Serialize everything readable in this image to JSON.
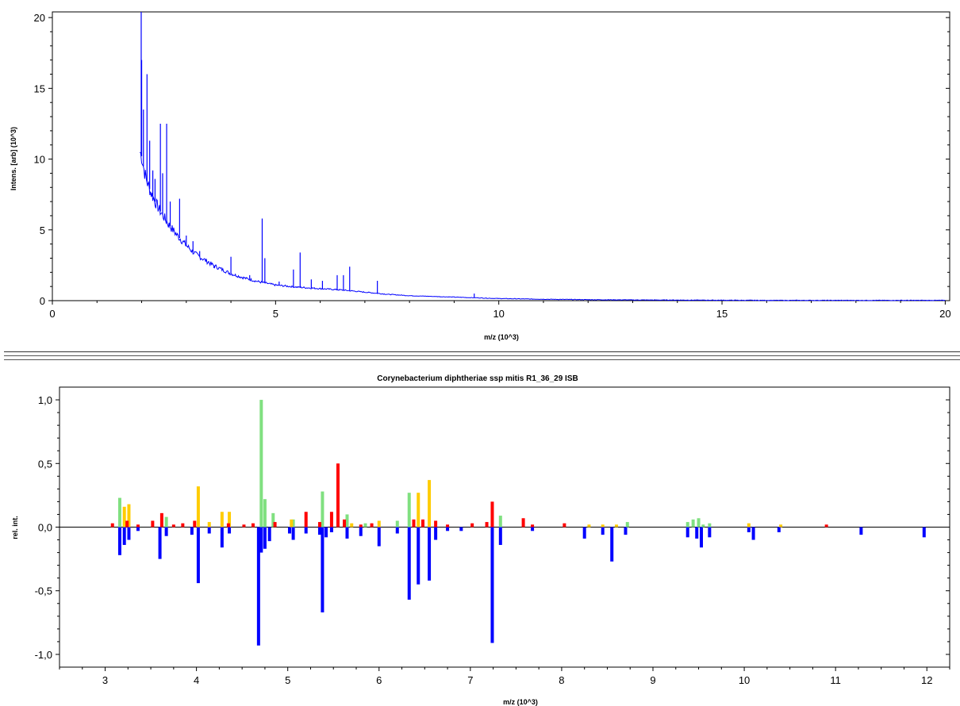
{
  "chart_data": [
    {
      "type": "line",
      "title": "",
      "xlabel": "m/z (10^3)",
      "ylabel": "Intens. [arb] (10^3)",
      "xlim": [
        0,
        20.1
      ],
      "ylim": [
        0,
        20.4
      ],
      "xticks": [
        0,
        5,
        10,
        15,
        20
      ],
      "yticks": [
        0,
        5,
        10,
        15,
        20
      ],
      "line_color": "#0000ff",
      "series": [
        {
          "x": [
            1.96,
            2.0,
            2.05,
            2.1,
            2.2,
            2.3,
            2.4,
            2.5,
            2.6,
            2.8,
            3.0,
            3.2,
            3.4,
            3.6,
            3.8,
            4.0,
            4.3,
            4.6,
            5.0,
            5.5,
            6.0,
            6.5,
            7.0,
            7.5,
            8.0,
            8.5,
            9.0,
            9.5,
            10.0,
            11.0,
            12.0,
            13.0,
            14.0,
            15.0,
            16.0,
            18.0,
            20.0
          ],
          "y": [
            10.5,
            10.2,
            9.3,
            8.6,
            7.7,
            7.0,
            6.4,
            5.9,
            5.4,
            4.6,
            3.9,
            3.3,
            2.9,
            2.5,
            2.2,
            1.9,
            1.6,
            1.35,
            1.1,
            0.95,
            0.85,
            0.75,
            0.6,
            0.45,
            0.35,
            0.3,
            0.25,
            0.2,
            0.15,
            0.1,
            0.07,
            0.05,
            0.04,
            0.03,
            0.02,
            0.02,
            0.02
          ]
        }
      ],
      "peaks": [
        {
          "x": 1.99,
          "y": 20.4
        },
        {
          "x": 2.0,
          "y": 17.0
        },
        {
          "x": 2.04,
          "y": 13.5
        },
        {
          "x": 2.12,
          "y": 16.0
        },
        {
          "x": 2.18,
          "y": 11.3
        },
        {
          "x": 2.25,
          "y": 9.2
        },
        {
          "x": 2.3,
          "y": 8.6
        },
        {
          "x": 2.42,
          "y": 12.5
        },
        {
          "x": 2.47,
          "y": 9.0
        },
        {
          "x": 2.56,
          "y": 12.5
        },
        {
          "x": 2.64,
          "y": 7.0
        },
        {
          "x": 2.85,
          "y": 7.2
        },
        {
          "x": 3.0,
          "y": 4.6
        },
        {
          "x": 3.15,
          "y": 4.2
        },
        {
          "x": 3.3,
          "y": 3.5
        },
        {
          "x": 3.5,
          "y": 2.8
        },
        {
          "x": 3.62,
          "y": 2.3
        },
        {
          "x": 4.0,
          "y": 3.1
        },
        {
          "x": 4.42,
          "y": 1.8
        },
        {
          "x": 4.7,
          "y": 5.8
        },
        {
          "x": 4.76,
          "y": 3.0
        },
        {
          "x": 5.08,
          "y": 1.35
        },
        {
          "x": 5.4,
          "y": 2.2
        },
        {
          "x": 5.55,
          "y": 3.4
        },
        {
          "x": 5.8,
          "y": 1.5
        },
        {
          "x": 6.05,
          "y": 1.4
        },
        {
          "x": 6.38,
          "y": 1.8
        },
        {
          "x": 6.52,
          "y": 1.8
        },
        {
          "x": 6.66,
          "y": 2.4
        },
        {
          "x": 7.28,
          "y": 1.4
        },
        {
          "x": 9.45,
          "y": 0.5
        }
      ]
    },
    {
      "type": "bar",
      "title": "Corynebacterium diphtheriae ssp mitis R1_36_29 ISB",
      "xlabel": "m/z (10^3)",
      "ylabel": "rel. int.",
      "xlim": [
        2.5,
        12.25
      ],
      "ylim": [
        -1.1,
        1.1
      ],
      "xticks": [
        3,
        4,
        5,
        6,
        7,
        8,
        9,
        10,
        11,
        12
      ],
      "yticks": [
        1.0,
        0.5,
        0.0,
        -0.5,
        -1.0
      ],
      "ytick_labels": [
        "1,0",
        "0,5",
        "0,0",
        "-0,5",
        "-1,0"
      ],
      "colors": {
        "red": "#ff0000",
        "yellow": "#ffcc00",
        "green": "#80e080",
        "blue": "#0000ff"
      },
      "series": [
        {
          "name": "red",
          "x": [
            3.08,
            3.24,
            3.36,
            3.52,
            3.62,
            3.75,
            3.85,
            3.98,
            4.35,
            4.52,
            4.62,
            4.86,
            5.2,
            5.35,
            5.48,
            5.55,
            5.62,
            5.8,
            5.92,
            6.38,
            6.48,
            6.62,
            6.75,
            7.02,
            7.18,
            7.24,
            7.58,
            7.68,
            8.03,
            10.9
          ],
          "y": [
            0.03,
            0.05,
            0.02,
            0.05,
            0.11,
            0.02,
            0.03,
            0.05,
            0.03,
            0.02,
            0.03,
            0.04,
            0.12,
            0.04,
            0.12,
            0.5,
            0.06,
            0.02,
            0.03,
            0.06,
            0.06,
            0.05,
            0.02,
            0.03,
            0.04,
            0.2,
            0.07,
            0.02,
            0.03,
            0.02
          ]
        },
        {
          "name": "yellow",
          "x": [
            3.21,
            3.26,
            4.02,
            4.14,
            4.28,
            4.36,
            5.04,
            5.7,
            6.0,
            6.43,
            6.55,
            8.3,
            8.45,
            8.6,
            10.05,
            10.4
          ],
          "y": [
            0.16,
            0.18,
            0.32,
            0.04,
            0.12,
            0.12,
            0.06,
            0.03,
            0.05,
            0.27,
            0.37,
            0.02,
            0.02,
            0.02,
            0.03,
            0.02
          ]
        },
        {
          "name": "green",
          "x": [
            3.16,
            3.67,
            4.71,
            4.75,
            4.84,
            5.06,
            5.38,
            5.65,
            5.85,
            6.2,
            6.33,
            7.33,
            8.72,
            9.38,
            9.44,
            9.5,
            9.55,
            9.62
          ],
          "y": [
            0.23,
            0.08,
            1.0,
            0.22,
            0.11,
            0.06,
            0.28,
            0.1,
            0.03,
            0.05,
            0.27,
            0.09,
            0.04,
            0.04,
            0.06,
            0.07,
            0.02,
            0.03
          ]
        },
        {
          "name": "blue",
          "x": [
            3.16,
            3.21,
            3.26,
            3.36,
            3.6,
            3.67,
            3.95,
            4.02,
            4.14,
            4.28,
            4.36,
            4.68,
            4.71,
            4.75,
            4.8,
            5.02,
            5.06,
            5.2,
            5.35,
            5.38,
            5.42,
            5.48,
            5.65,
            5.8,
            6.0,
            6.2,
            6.33,
            6.43,
            6.55,
            6.62,
            6.75,
            6.9,
            7.24,
            7.33,
            7.68,
            8.25,
            8.45,
            8.55,
            8.7,
            9.38,
            9.48,
            9.53,
            9.62,
            10.05,
            10.1,
            10.38,
            11.28,
            11.97
          ],
          "y": [
            -0.22,
            -0.14,
            -0.1,
            -0.03,
            -0.25,
            -0.07,
            -0.06,
            -0.44,
            -0.05,
            -0.16,
            -0.05,
            -0.93,
            -0.2,
            -0.17,
            -0.11,
            -0.05,
            -0.1,
            -0.05,
            -0.06,
            -0.67,
            -0.08,
            -0.04,
            -0.09,
            -0.07,
            -0.15,
            -0.05,
            -0.57,
            -0.45,
            -0.42,
            -0.1,
            -0.03,
            -0.03,
            -0.91,
            -0.14,
            -0.03,
            -0.09,
            -0.06,
            -0.27,
            -0.06,
            -0.08,
            -0.09,
            -0.16,
            -0.08,
            -0.04,
            -0.1,
            -0.04,
            -0.06,
            -0.08
          ]
        }
      ]
    }
  ]
}
